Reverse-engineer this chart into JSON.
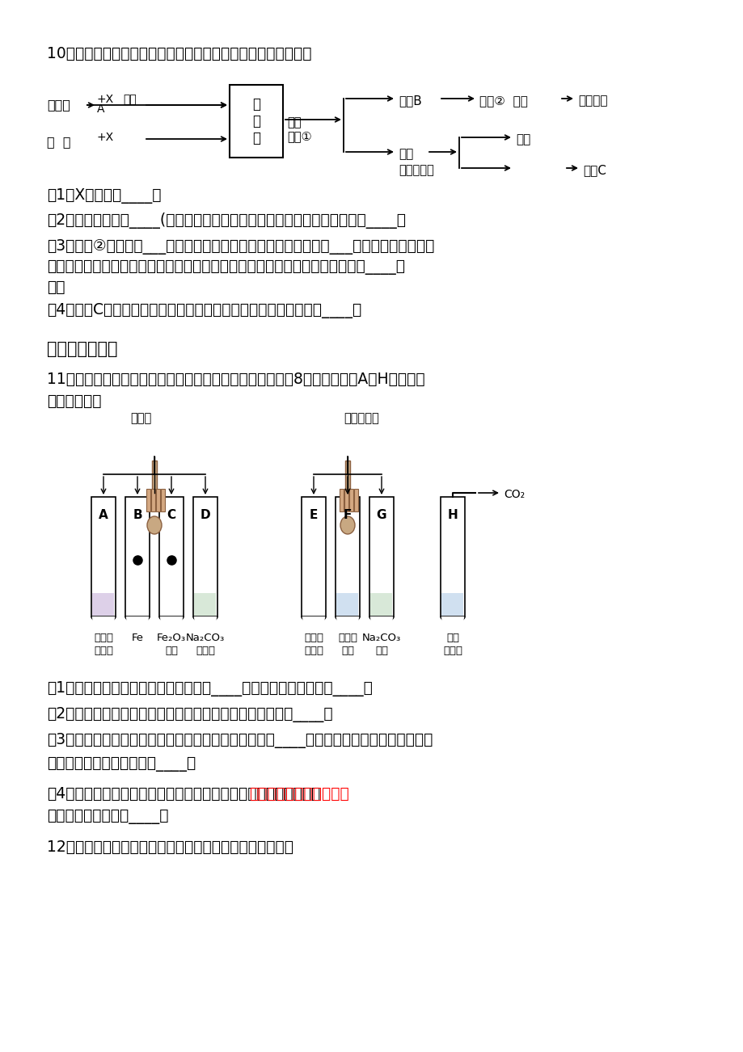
{
  "bg_color": "#ffffff",
  "text_color": "#000000",
  "q10_header": "10．下面是某工厂苛化法生产烧碱的示意图．请回答下列问题：",
  "q10_1": "（1）X的化学式____．",
  "q10_2": "（2）生石灰可以由____(填名称）高温煅烧而得，其反应的化学方程式为：____．",
  "q10_3a": "（3）操作②的名称是___；结晶得到的固体烧碱中可能含有少量的___（写化学式）；烧碱",
  "q10_3b": "有强烈的腐蚀性，如果不慎将碱液沾到皮肤上，可先用较多的水冲洗，再涂上稀____溶",
  "q10_3c": "液．",
  "q10_4": "（4）滤液C可加入反应池循环再利用，目的是降低生产成本和防止____．",
  "section3": "三、实验探究题",
  "q11_header1": "11．某化学实验小组欲探究盐酸、氢氧化钙的化学性质，取8支试管分别用A－H编号后，",
  "q11_header2": "做如下实验．",
  "q11_1": "（1）实验中观察到有气泡出现的试管是____，有沉淀生成的试管是____．",
  "q11_2": "（2）写出实验中无明显现象产生的试管中发生的化学方程式____．",
  "q11_3a": "（3）实验后某试管中为红色溶液，当向其中加入过量的____后，溶液变为蓝色．由此推断，",
  "q11_3b": "该试管中最初盛有的物质是____．",
  "q11_4a_black": "（4）实验后某试管的底部有白色固体，过滤后向滤液中滴加盐酸，",
  "q11_4a_red": "一段时间后有气泡冒出，",
  "q11_4b": "则该滤液中的溶质是____．",
  "q12_header": "12．甲乙两同学在学习酸的化学性质时做了如图所示实验："
}
